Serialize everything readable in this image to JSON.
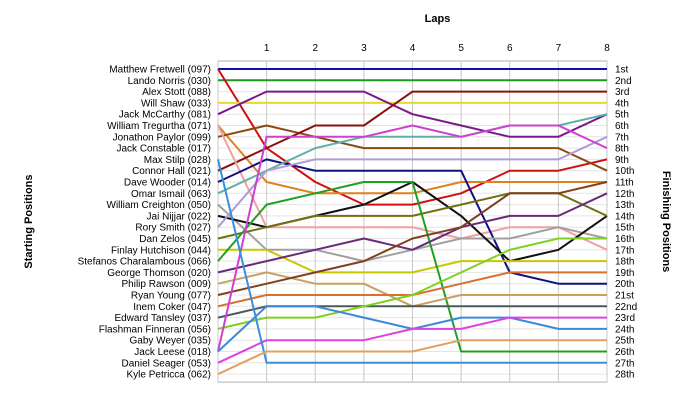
{
  "chart_data": {
    "type": "line",
    "title": "",
    "xlabel": "Laps",
    "ylabel_left": "Starting Positions",
    "ylabel_right": "Finishing Positions",
    "x": [
      0,
      1,
      2,
      3,
      4,
      5,
      6,
      7,
      8
    ],
    "x_tick_labels": [
      "1",
      "2",
      "3",
      "4",
      "5",
      "6",
      "7",
      "8"
    ],
    "y_range": [
      1,
      28
    ],
    "y_inverted": true,
    "grid": true,
    "finishing_position_labels": [
      "1st",
      "2nd",
      "3rd",
      "4th",
      "5th",
      "6th",
      "7th",
      "8th",
      "9th",
      "10th",
      "11th",
      "12th",
      "13th",
      "14th",
      "15th",
      "16th",
      "17th",
      "18th",
      "19th",
      "20th",
      "21st",
      "22nd",
      "23rd",
      "24th",
      "25th",
      "26th",
      "27th",
      "28th"
    ],
    "series": [
      {
        "name": "Matthew Fretwell (097)",
        "color": "#1010b0",
        "values": [
          1,
          1,
          1,
          1,
          1,
          1,
          1,
          1,
          1
        ]
      },
      {
        "name": "Lando Norris (030)",
        "color": "#1a9a1a",
        "values": [
          2,
          2,
          2,
          2,
          2,
          2,
          2,
          2,
          2
        ]
      },
      {
        "name": "Alex Stott (088)",
        "color": "#d01010",
        "values": [
          1,
          8,
          11,
          13,
          13,
          12,
          10,
          10,
          9
        ]
      },
      {
        "name": "Will Shaw (033)",
        "color": "#e8d830",
        "values": [
          4,
          4,
          4,
          4,
          4,
          4,
          4,
          4,
          4
        ]
      },
      {
        "name": "Jack McCarthy (081)",
        "color": "#7a1a8a",
        "values": [
          5,
          3,
          3,
          3,
          5,
          6,
          7,
          7,
          5
        ]
      },
      {
        "name": "William Tregurtha (071)",
        "color": "#e08020",
        "values": [
          6,
          11,
          12,
          12,
          12,
          11,
          11,
          11,
          11
        ]
      },
      {
        "name": "Jonathon Paylor (099)",
        "color": "#8a4a10",
        "values": [
          7,
          6,
          7,
          8,
          8,
          8,
          8,
          8,
          10
        ]
      },
      {
        "name": "Jack Constable (017)",
        "color": "#8a1010",
        "values": [
          10,
          8,
          6,
          6,
          3,
          3,
          3,
          3,
          3
        ]
      },
      {
        "name": "Max Stilp (028)",
        "color": "#f0a0a0",
        "values": [
          6,
          15,
          15,
          15,
          15,
          16,
          15,
          15,
          17
        ]
      },
      {
        "name": "Connor Hall (021)",
        "color": "#101080",
        "values": [
          11,
          9,
          10,
          10,
          10,
          10,
          19,
          20,
          20
        ]
      },
      {
        "name": "Dave Wooder (014)",
        "color": "#60b0a8",
        "values": [
          12,
          10,
          8,
          7,
          7,
          7,
          6,
          6,
          5
        ]
      },
      {
        "name": "Omar Ismail (063)",
        "color": "#a0a0a0",
        "values": [
          13,
          17,
          17,
          18,
          17,
          16,
          16,
          15,
          16
        ]
      },
      {
        "name": "William Creighton (050)",
        "color": "#101010",
        "values": [
          14,
          15,
          14,
          13,
          11,
          14,
          18,
          17,
          14
        ]
      },
      {
        "name": "Jai Nijjar (022)",
        "color": "#b09ad8",
        "values": [
          15,
          10,
          9,
          9,
          9,
          9,
          9,
          9,
          7
        ]
      },
      {
        "name": "Rory Smith (027)",
        "color": "#707010",
        "values": [
          16,
          15,
          14,
          14,
          14,
          13,
          12,
          12,
          14
        ]
      },
      {
        "name": "Dan Zelos (045)",
        "color": "#c8c800",
        "values": [
          17,
          17,
          19,
          19,
          19,
          18,
          18,
          18,
          18
        ]
      },
      {
        "name": "Finlay Hutchison (044)",
        "color": "#20a020",
        "values": [
          18,
          13,
          12,
          11,
          11,
          26,
          26,
          26,
          26
        ]
      },
      {
        "name": "Stefanos Charalambous (066)",
        "color": "#6a2a7a",
        "values": [
          19,
          18,
          17,
          16,
          17,
          15,
          14,
          14,
          12
        ]
      },
      {
        "name": "George Thomson (020)",
        "color": "#c8a060",
        "values": [
          20,
          19,
          20,
          20,
          22,
          21,
          21,
          21,
          21
        ]
      },
      {
        "name": "Philip Rawson (009)",
        "color": "#804020",
        "values": [
          21,
          20,
          19,
          18,
          16,
          15,
          12,
          12,
          11
        ]
      },
      {
        "name": "Ryan Young (077)",
        "color": "#d87030",
        "values": [
          22,
          21,
          21,
          21,
          21,
          20,
          19,
          19,
          19
        ]
      },
      {
        "name": "Inem Coker (047)",
        "color": "#4a5a5a",
        "values": [
          23,
          22,
          22,
          22,
          22,
          22,
          22,
          22,
          22
        ]
      },
      {
        "name": "Edward Tansley (037)",
        "color": "#80d020",
        "values": [
          24,
          23,
          23,
          22,
          21,
          19,
          17,
          16,
          16
        ]
      },
      {
        "name": "Flashman Finneran (056)",
        "color": "#d040d0",
        "values": [
          26,
          7,
          7,
          7,
          6,
          7,
          6,
          6,
          8
        ]
      },
      {
        "name": "Gaby Weyer (035)",
        "color": "#3a8ad8",
        "values": [
          26,
          22,
          22,
          23,
          24,
          23,
          23,
          24,
          24
        ]
      },
      {
        "name": "Jack Leese (018)",
        "color": "#e040e0",
        "values": [
          27,
          25,
          25,
          25,
          24,
          24,
          23,
          23,
          23
        ]
      },
      {
        "name": "Daniel Seager (053)",
        "color": "#3a90d8",
        "values": [
          9,
          27,
          27,
          27,
          27,
          27,
          27,
          27,
          27
        ]
      },
      {
        "name": "Kyle Petricca (062)",
        "color": "#e0a060",
        "values": [
          28,
          26,
          26,
          26,
          26,
          25,
          25,
          25,
          25
        ]
      }
    ]
  }
}
